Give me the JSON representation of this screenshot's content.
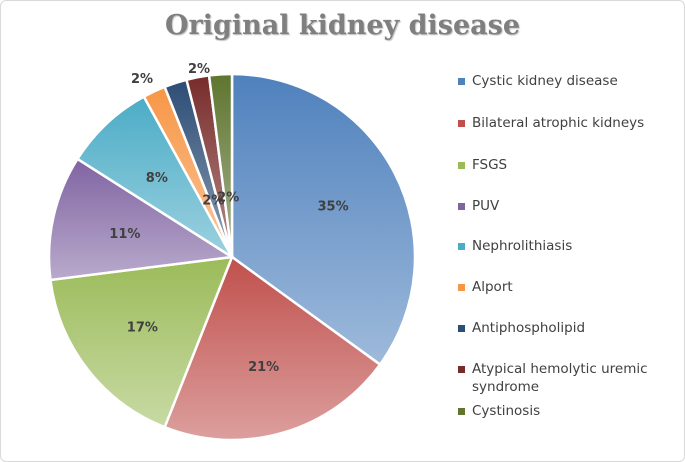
{
  "chart_data": {
    "type": "pie",
    "title": "Original kidney disease",
    "legend_position": "right",
    "slices": [
      {
        "label": "Cystic kidney disease",
        "value": 35,
        "display": "35%",
        "color": "#4f81bd"
      },
      {
        "label": "Bilateral atrophic kidneys",
        "value": 21,
        "display": "21%",
        "color": "#c0504d"
      },
      {
        "label": "FSGS",
        "value": 17,
        "display": "17%",
        "color": "#9bbb59"
      },
      {
        "label": "PUV",
        "value": 11,
        "display": "11%",
        "color": "#8064a2"
      },
      {
        "label": "Nephrolithiasis",
        "value": 8,
        "display": "8%",
        "color": "#4bacc6"
      },
      {
        "label": "Alport",
        "value": 2,
        "display": "2%",
        "color": "#f79646"
      },
      {
        "label": "Antiphospholipid",
        "value": 2,
        "display": "2%",
        "color": "#2c4d75"
      },
      {
        "label": "Atypical hemolytic uremic syndrome",
        "value": 2,
        "display": "2%",
        "color": "#772c2a"
      },
      {
        "label": "Cystinosis",
        "value": 2,
        "display": "2%",
        "color": "#5f7530"
      }
    ]
  }
}
